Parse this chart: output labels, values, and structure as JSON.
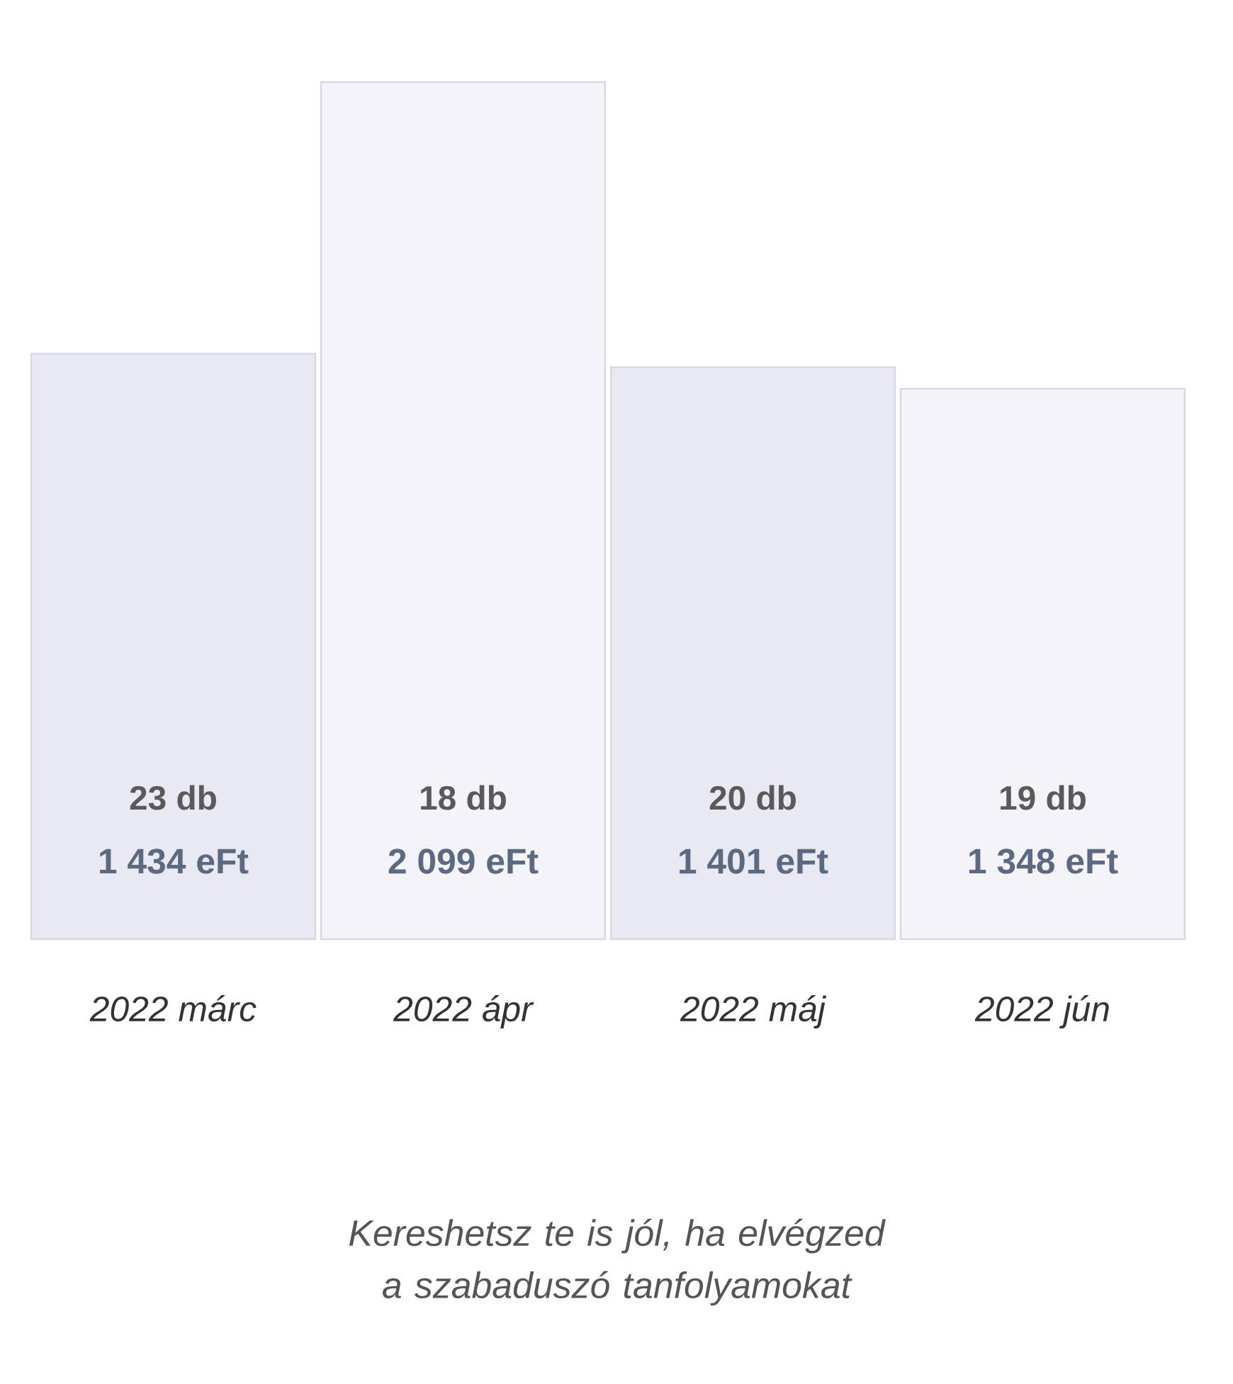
{
  "chart_data": {
    "type": "bar",
    "categories": [
      "2022 márc",
      "2022 ápr",
      "2022 máj",
      "2022 jún"
    ],
    "values": [
      1434,
      2099,
      1401,
      1348
    ],
    "value_labels": [
      "1 434 eFt",
      "2 099 eFt",
      "1 401 eFt",
      "1 348 eFt"
    ],
    "colors": [
      "#e9e9f3",
      "#f3f3f8",
      "#e9e9f3",
      "#f3f3f8"
    ],
    "ylim": [
      0,
      2099
    ],
    "tick_labels": "x",
    "annotations": [
      "23 db",
      "18 db",
      "20 db",
      "19 db",
      "Kereshetsz te is jól, ha elvégzed a szabaduszó tanfolyamokat"
    ]
  }
}
